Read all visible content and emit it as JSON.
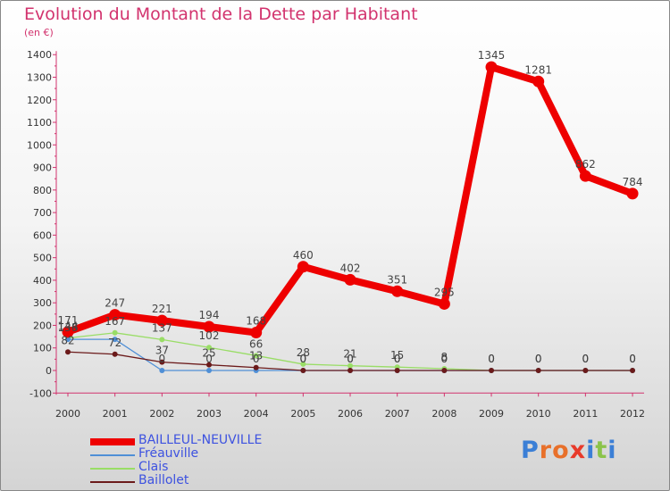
{
  "title": "Evolution du Montant de la Dette par Habitant",
  "subtitle": "(en €)",
  "logo_text": "Proxiti",
  "chart_data": {
    "type": "line",
    "x": [
      "2000",
      "2001",
      "2002",
      "2003",
      "2004",
      "2005",
      "2006",
      "2007",
      "2008",
      "2009",
      "2010",
      "2011",
      "2012"
    ],
    "ylim": [
      -100,
      1400
    ],
    "yticks": [
      -100,
      0,
      100,
      200,
      300,
      400,
      500,
      600,
      700,
      800,
      900,
      1000,
      1100,
      1200,
      1300,
      1400
    ],
    "grid": false,
    "legend_position": "bottom-left",
    "series": [
      {
        "name": "BAILLEUL-NEUVILLE",
        "color": "#ee0000",
        "values": [
          171,
          247,
          221,
          194,
          168,
          460,
          402,
          351,
          295,
          1345,
          1281,
          862,
          784
        ],
        "labels": [
          "171",
          "247",
          "221",
          "194",
          "168",
          "460",
          "402",
          "351",
          "295",
          "1345",
          "1281",
          "862",
          "784"
        ]
      },
      {
        "name": "Fréauville",
        "color": "#4f8fd6",
        "values": [
          138,
          138,
          0,
          0,
          0,
          0,
          0,
          0,
          0,
          0,
          0,
          0,
          0
        ],
        "labels": [
          "138",
          "",
          "0",
          "0",
          "0",
          "0",
          "0",
          "0",
          "0",
          "0",
          "0",
          "0",
          "0"
        ]
      },
      {
        "name": "Clais",
        "color": "#99dd66",
        "values": [
          144,
          167,
          137,
          102,
          66,
          28,
          21,
          15,
          8,
          0,
          0,
          0,
          0
        ],
        "labels": [
          "144",
          "167",
          "137",
          "102",
          "66",
          "28",
          "21",
          "15",
          "8",
          "",
          "",
          "",
          ""
        ]
      },
      {
        "name": "Baillolet",
        "color": "#6b1a1a",
        "values": [
          82,
          72,
          37,
          25,
          13,
          0,
          0,
          0,
          0,
          0,
          0,
          0,
          0
        ],
        "labels": [
          "82",
          "72",
          "37",
          "25",
          "13",
          "0",
          "0",
          "0",
          "0",
          "0",
          "0",
          "0",
          "0"
        ]
      }
    ]
  }
}
